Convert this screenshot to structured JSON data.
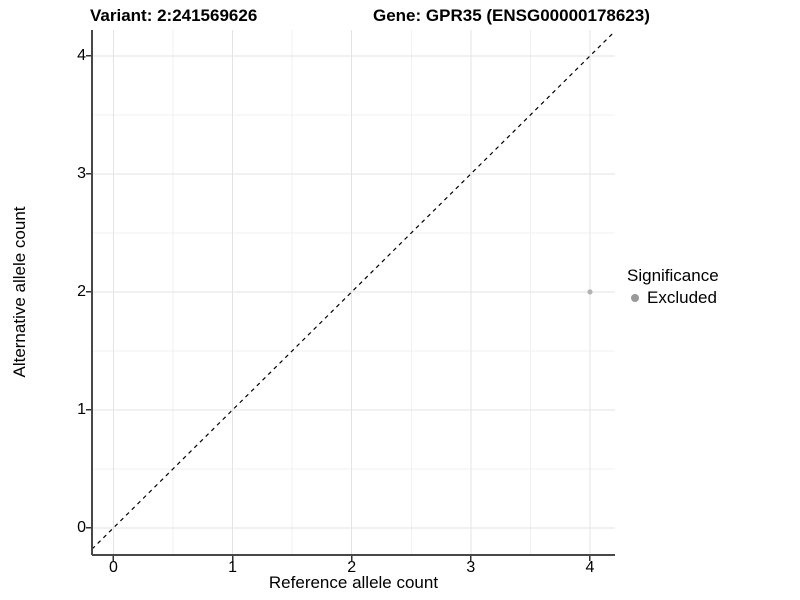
{
  "titles": {
    "variant": "Variant: 2:241569626",
    "gene": "Gene: GPR35 (ENSG00000178623)"
  },
  "legend": {
    "title": "Significance",
    "items": [
      {
        "label": "Excluded",
        "color": "#999999"
      }
    ]
  },
  "chart_data": {
    "type": "scatter",
    "title_left": "Variant: 2:241569626",
    "title_right": "Gene: GPR35 (ENSG00000178623)",
    "xlabel": "Reference allele count",
    "ylabel": "Alternative allele count",
    "xlim": [
      -0.18,
      4.21
    ],
    "ylim": [
      -0.23,
      4.22
    ],
    "x_ticks": [
      0,
      1,
      2,
      3,
      4
    ],
    "y_ticks": [
      0,
      1,
      2,
      3,
      4
    ],
    "x_minor_ticks": [
      0.5,
      1.5,
      2.5,
      3.5
    ],
    "y_minor_ticks": [
      0.5,
      1.5,
      2.5,
      3.5
    ],
    "grid": true,
    "legend_position": "right",
    "identity_line": {
      "shown": true,
      "style": "dashed",
      "color": "#000000"
    },
    "series": [
      {
        "name": "Excluded",
        "color": "#b3b3b3",
        "points": [
          {
            "x": 4,
            "y": 2
          }
        ]
      }
    ],
    "colors": {
      "axis_line": "#474747",
      "tick_mark": "#333333",
      "grid_major": "#e3e3e3",
      "grid_minor": "#f1f1f1",
      "panel_bg": "#ffffff"
    }
  }
}
